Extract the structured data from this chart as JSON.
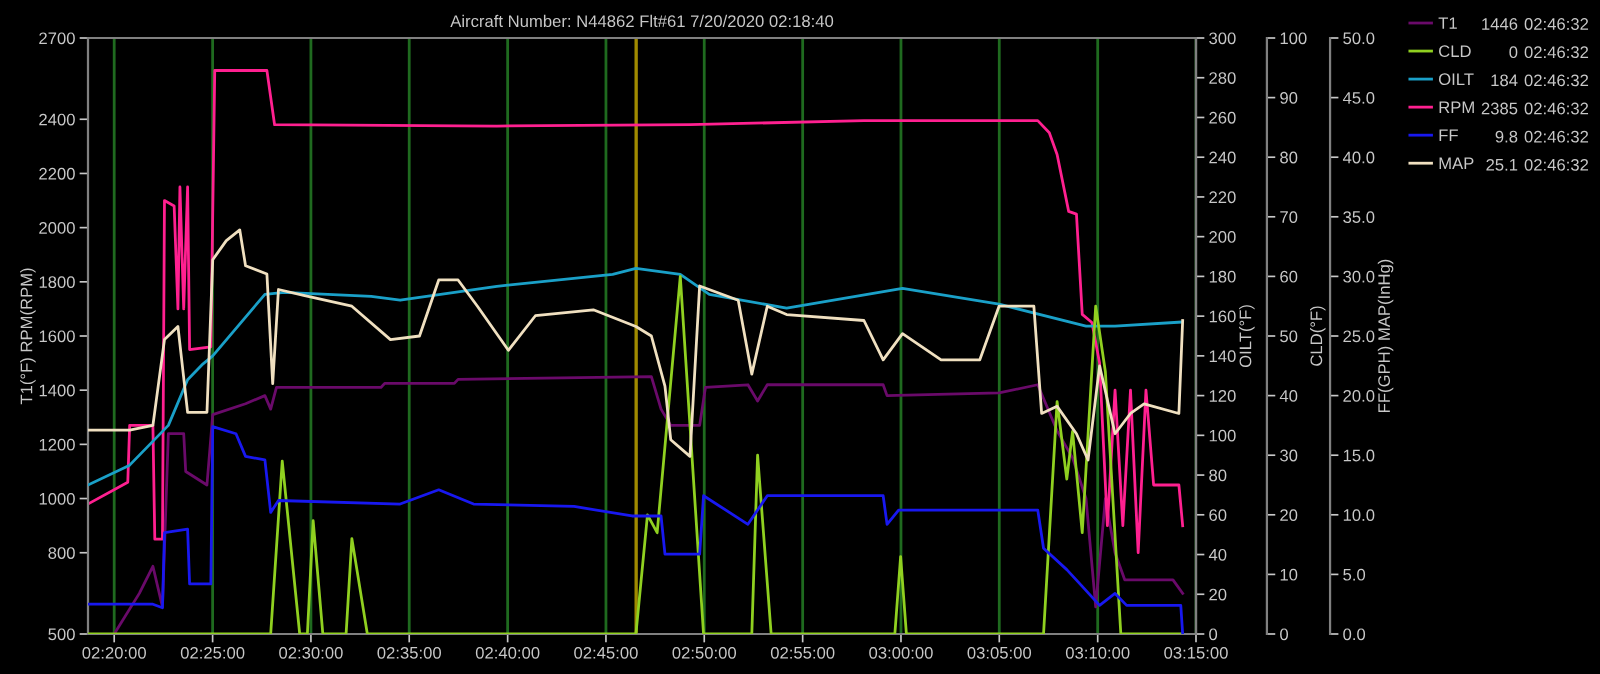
{
  "chart_data": [
    {
      "type": "line",
      "title": "Aircraft Number: N44862 Flt#61 7/20/2020 02:18:40",
      "ylabel": "T1(°F) RPM(RPM)",
      "y2label": "OILT(°F)",
      "y3label": "CLD(°F)",
      "xlim": [
        2.3111,
        3.25
      ],
      "xticks": [
        {
          "value": 2.3333,
          "label": "02:20:00"
        },
        {
          "value": 2.4167,
          "label": "02:25:00"
        },
        {
          "value": 2.5,
          "label": "02:30:00"
        },
        {
          "value": 2.5833,
          "label": "02:35:00"
        },
        {
          "value": 2.6667,
          "label": "02:40:00"
        },
        {
          "value": 2.75,
          "label": "02:45:00"
        },
        {
          "value": 2.8333,
          "label": "02:50:00"
        },
        {
          "value": 2.9167,
          "label": "02:55:00"
        },
        {
          "value": 3.0,
          "label": "03:00:00"
        },
        {
          "value": 3.0833,
          "label": "03:05:00"
        },
        {
          "value": 3.1667,
          "label": "03:10:00"
        },
        {
          "value": 3.25,
          "label": "03:15:00"
        }
      ],
      "ylim": [
        500,
        2700
      ],
      "yticks": [
        500,
        800,
        1000,
        1200,
        1400,
        1600,
        1800,
        2000,
        2200,
        2400,
        2700
      ],
      "y2lim": [
        0,
        300
      ],
      "y2ticks": [
        0,
        20,
        40,
        60,
        80,
        100,
        120,
        140,
        160,
        180,
        200,
        220,
        240,
        260,
        280,
        300
      ],
      "y3lim": [
        0,
        100
      ],
      "y3ticks": [
        0,
        10,
        20,
        30,
        40,
        50,
        60,
        70,
        80,
        90,
        100
      ],
      "grid": "x",
      "legend": "top right",
      "ref_lines": [
        {
          "axis": "x",
          "value": 2.7756,
          "color": "#a08a00"
        }
      ],
      "annotations": [
        "1446",
        "02:46:32",
        "0",
        "02:46:32",
        "184",
        "02:46:32",
        "2385",
        "02:46:32"
      ],
      "series": [
        {
          "name": "T1",
          "color": "#6a0a6a",
          "axis": "y",
          "x": [
            2.3333,
            2.3546,
            2.3661,
            2.3742,
            2.3792,
            2.3922,
            2.3939,
            2.4119,
            2.4168,
            2.4446,
            2.461,
            2.4659,
            2.4708,
            2.5593,
            2.5625,
            2.6215,
            2.6247,
            2.7885,
            2.7967,
            2.8049,
            2.8294,
            2.8343,
            2.8703,
            2.8785,
            2.8867,
            2.9849,
            2.9882,
            3.0831,
            3.1159,
            3.1323,
            3.1454,
            3.1568,
            3.165,
            3.1732,
            3.1814,
            3.1896,
            3.206,
            3.2305,
            3.2387
          ],
          "values": [
            500,
            650,
            750,
            600,
            1240,
            1240,
            1100,
            1050,
            1310,
            1350,
            1380,
            1330,
            1410,
            1410,
            1425,
            1425,
            1440,
            1450,
            1330,
            1270,
            1270,
            1410,
            1420,
            1360,
            1420,
            1420,
            1380,
            1390,
            1420,
            1250,
            1150,
            1000,
            600,
            1000,
            800,
            700,
            700,
            700,
            650
          ]
        },
        {
          "name": "CLD",
          "color": "#90d020",
          "axis": "y3",
          "x": [
            2.3111,
            2.4659,
            2.4757,
            2.4905,
            2.497,
            2.5019,
            2.5101,
            2.5298,
            2.5347,
            2.5478,
            2.7754,
            2.7852,
            2.7934,
            2.813,
            2.8327,
            2.8736,
            2.8785,
            2.89,
            2.9948,
            2.9997,
            3.0046,
            3.1208,
            3.1323,
            3.1405,
            3.1454,
            3.1536,
            3.165,
            3.1732,
            3.1863,
            3.2387
          ],
          "values": [
            0,
            0,
            29,
            0,
            0,
            19,
            0,
            0,
            16,
            0,
            0,
            20,
            17,
            60,
            0,
            0,
            30,
            0,
            0,
            13,
            0,
            0,
            39,
            26,
            34,
            17,
            55,
            44,
            0,
            0
          ]
        },
        {
          "name": "OILT",
          "color": "#1aa0c8",
          "axis": "y2",
          "x": [
            2.3111,
            2.3464,
            2.3792,
            2.3955,
            2.4086,
            2.4168,
            2.461,
            2.4774,
            2.5511,
            2.5756,
            2.6575,
            2.7557,
            2.7754,
            2.813,
            2.8376,
            2.9031,
            3.0013,
            3.0831,
            3.1568,
            3.1814,
            3.2371
          ],
          "values": [
            75,
            85,
            105,
            128,
            136,
            140,
            171,
            172,
            170,
            168,
            175,
            181,
            184,
            181,
            171,
            164,
            174,
            166,
            155,
            155,
            157
          ]
        },
        {
          "name": "RPM",
          "color": "#ff2090",
          "axis": "y",
          "x": [
            2.3111,
            2.3448,
            2.3464,
            2.3661,
            2.3677,
            2.3742,
            2.3759,
            2.3841,
            2.3873,
            2.389,
            2.3922,
            2.3955,
            2.3972,
            2.4152,
            2.4185,
            2.4627,
            2.4692,
            2.6575,
            2.8212,
            2.9686,
            3.1159,
            3.1257,
            3.1323,
            3.1421,
            3.1487,
            3.1536,
            3.1618,
            3.1683,
            3.1749,
            3.1814,
            3.188,
            3.1945,
            3.201,
            3.2076,
            3.2141,
            3.2355,
            3.2387
          ],
          "values": [
            980,
            1060,
            1270,
            1270,
            850,
            850,
            2100,
            2080,
            1700,
            2150,
            1700,
            2150,
            1550,
            1560,
            2580,
            2580,
            2380,
            2375,
            2380,
            2395,
            2395,
            2350,
            2270,
            2060,
            2050,
            1680,
            1650,
            1500,
            900,
            1400,
            900,
            1400,
            800,
            1400,
            1050,
            1050,
            900
          ]
        }
      ]
    },
    {
      "type": "line",
      "ylabel": "FF(GPH) MAP(InHg)",
      "xlim": [
        2.3111,
        3.25
      ],
      "tick_labels": "y",
      "ylim": [
        0,
        50
      ],
      "yticks": [
        {
          "value": 0,
          "label": "0.0"
        },
        {
          "value": 5,
          "label": "5.0"
        },
        {
          "value": 10,
          "label": "10.0"
        },
        {
          "value": 15,
          "label": "15.0"
        },
        {
          "value": 20,
          "label": "20.0"
        },
        {
          "value": 25,
          "label": "25.0"
        },
        {
          "value": 30,
          "label": "30.0"
        },
        {
          "value": 35,
          "label": "35.0"
        },
        {
          "value": 40,
          "label": "40.0"
        },
        {
          "value": 45,
          "label": "45.0"
        },
        {
          "value": 50,
          "label": "50.0"
        }
      ],
      "legend": "top right",
      "annotations": [
        "9.8",
        "02:46:32",
        "25.1",
        "02:46:32"
      ],
      "series": [
        {
          "name": "FF",
          "color": "#1818f0",
          "x": [
            2.3111,
            2.3661,
            2.3742,
            2.3759,
            2.3955,
            2.3972,
            2.4152,
            2.4168,
            2.4365,
            2.4446,
            2.461,
            2.4659,
            2.4725,
            2.5756,
            2.6083,
            2.6378,
            2.723,
            2.7721,
            2.7967,
            2.8,
            2.8294,
            2.8327,
            2.8703,
            2.8867,
            2.9849,
            2.9882,
            2.998,
            3.1159,
            3.1208,
            3.1405,
            3.1536,
            3.1683,
            3.1814,
            3.1912,
            3.2371,
            3.2387
          ],
          "values": [
            2.5,
            2.5,
            2.2,
            8.5,
            8.8,
            4.2,
            4.2,
            17.4,
            16.8,
            14.9,
            14.6,
            10.2,
            11.2,
            10.9,
            12.1,
            10.9,
            10.7,
            9.9,
            9.9,
            6.7,
            6.7,
            11.6,
            9.2,
            11.6,
            11.6,
            9.2,
            10.4,
            10.4,
            7.2,
            5.4,
            4.0,
            2.4,
            3.4,
            2.4,
            2.4,
            0
          ]
        },
        {
          "name": "MAP",
          "color": "#f0e0c0",
          "x": [
            2.3111,
            2.3464,
            2.3661,
            2.3759,
            2.3873,
            2.3955,
            2.4119,
            2.4168,
            2.4283,
            2.4397,
            2.4446,
            2.4627,
            2.4676,
            2.4725,
            2.4938,
            2.5347,
            2.5674,
            2.592,
            2.6083,
            2.6247,
            2.6411,
            2.6673,
            2.6902,
            2.7393,
            2.7754,
            2.7885,
            2.8,
            2.8049,
            2.8212,
            2.8294,
            2.8621,
            2.8736,
            2.8867,
            2.9031,
            2.9686,
            2.9849,
            3.0013,
            3.034,
            3.0668,
            3.0831,
            3.1126,
            3.1192,
            3.1323,
            3.1487,
            3.1585,
            3.1683,
            3.1814,
            3.1945,
            3.206,
            3.2355,
            3.2387
          ],
          "values": [
            17.1,
            17.1,
            17.5,
            24.7,
            25.8,
            18.6,
            18.6,
            31.4,
            33.0,
            33.9,
            30.9,
            30.2,
            21.0,
            28.9,
            28.4,
            27.5,
            24.7,
            25.0,
            29.7,
            29.7,
            27.5,
            23.8,
            26.7,
            27.2,
            25.8,
            25.0,
            20.8,
            16.3,
            14.9,
            29.2,
            28.0,
            21.8,
            27.5,
            26.8,
            26.3,
            23.0,
            25.2,
            23.0,
            23.0,
            27.5,
            27.5,
            18.5,
            19.1,
            16.8,
            14.6,
            22.5,
            16.8,
            18.5,
            19.3,
            18.5,
            26.3
          ]
        }
      ]
    }
  ]
}
